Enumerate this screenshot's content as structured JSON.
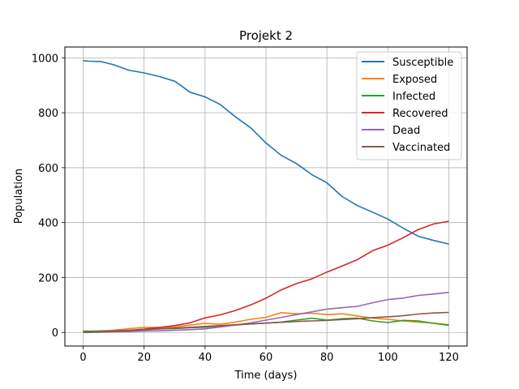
{
  "chart_data": {
    "type": "line",
    "title": "Projekt 2",
    "xlabel": "Time (days)",
    "ylabel": "Population",
    "xlim": [
      -6,
      126
    ],
    "ylim": [
      -49.5,
      1039.5
    ],
    "xticks": [
      0,
      20,
      40,
      60,
      80,
      100,
      120
    ],
    "yticks": [
      0,
      200,
      400,
      600,
      800,
      1000
    ],
    "grid": true,
    "legend_position": "top-right",
    "series": [
      {
        "name": "Susceptible",
        "color": "#1f77b4",
        "x": [
          0,
          2,
          6,
          10,
          15,
          20,
          25,
          30,
          32,
          35,
          40,
          45,
          50,
          55,
          60,
          65,
          70,
          75,
          80,
          85,
          90,
          95,
          100,
          105,
          110,
          115,
          120
        ],
        "values": [
          990,
          988,
          986,
          975,
          955,
          945,
          932,
          915,
          900,
          875,
          858,
          830,
          785,
          745,
          690,
          645,
          615,
          575,
          545,
          495,
          462,
          438,
          413,
          380,
          350,
          335,
          322
        ]
      },
      {
        "name": "Exposed",
        "color": "#ff7f0e",
        "x": [
          0,
          5,
          10,
          15,
          20,
          25,
          30,
          35,
          40,
          45,
          50,
          55,
          60,
          65,
          70,
          75,
          80,
          85,
          90,
          95,
          100,
          105,
          110,
          115,
          120
        ],
        "values": [
          3,
          5,
          8,
          14,
          18,
          18,
          20,
          27,
          33,
          30,
          38,
          48,
          55,
          72,
          68,
          70,
          65,
          68,
          60,
          52,
          48,
          42,
          38,
          34,
          28
        ]
      },
      {
        "name": "Infected",
        "color": "#2ca02c",
        "x": [
          0,
          5,
          10,
          15,
          20,
          25,
          30,
          35,
          40,
          45,
          50,
          55,
          60,
          65,
          70,
          75,
          80,
          85,
          90,
          95,
          100,
          105,
          110,
          115,
          120
        ],
        "values": [
          5,
          5,
          6,
          8,
          10,
          13,
          14,
          17,
          19,
          23,
          27,
          31,
          34,
          38,
          45,
          52,
          45,
          50,
          52,
          42,
          36,
          44,
          42,
          33,
          26
        ]
      },
      {
        "name": "Recovered",
        "color": "#d62728",
        "x": [
          0,
          5,
          10,
          15,
          20,
          25,
          30,
          35,
          40,
          45,
          50,
          55,
          60,
          65,
          70,
          75,
          80,
          85,
          90,
          95,
          100,
          105,
          110,
          115,
          120
        ],
        "values": [
          0,
          2,
          5,
          8,
          12,
          18,
          25,
          35,
          53,
          64,
          80,
          100,
          125,
          155,
          178,
          195,
          220,
          242,
          265,
          298,
          318,
          345,
          375,
          395,
          405
        ]
      },
      {
        "name": "Dead",
        "color": "#9467bd",
        "x": [
          0,
          5,
          10,
          15,
          20,
          25,
          30,
          35,
          40,
          45,
          50,
          55,
          60,
          65,
          70,
          75,
          80,
          85,
          90,
          95,
          100,
          105,
          110,
          115,
          120
        ],
        "values": [
          0,
          1,
          2,
          3,
          5,
          6,
          8,
          10,
          13,
          20,
          27,
          35,
          45,
          55,
          65,
          75,
          85,
          90,
          95,
          108,
          120,
          125,
          135,
          140,
          146
        ]
      },
      {
        "name": "Vaccinated",
        "color": "#8c564b",
        "x": [
          0,
          5,
          10,
          15,
          20,
          25,
          30,
          35,
          40,
          45,
          50,
          55,
          60,
          65,
          70,
          75,
          80,
          85,
          90,
          95,
          100,
          105,
          110,
          115,
          120
        ],
        "values": [
          0,
          2,
          4,
          7,
          10,
          13,
          16,
          19,
          22,
          25,
          28,
          31,
          34,
          37,
          40,
          42,
          44,
          47,
          50,
          54,
          57,
          61,
          67,
          71,
          73
        ]
      }
    ]
  }
}
